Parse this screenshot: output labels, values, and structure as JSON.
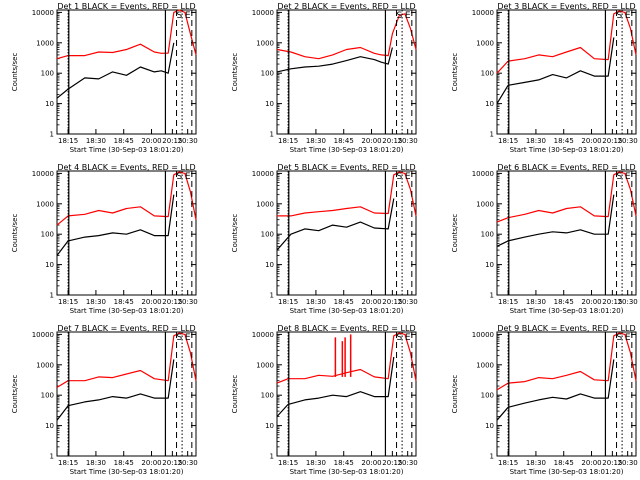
{
  "figure": {
    "ylabel": "Counts/sec",
    "xlabel_prefix": "Start Time",
    "start_time": "(30-Sep-03 18:01:20)",
    "start_time_alt": "(30-Sep-03 18:01:20)",
    "colors": {
      "events": "#000000",
      "lld": "#ff0000"
    },
    "marker_labels": [
      "S",
      "E"
    ]
  },
  "chart_data": [
    {
      "type": "line",
      "title": "Det 1 BLACK = Events, RED = LLD",
      "xlabel": "Start Time (30-Sep-03 18:01:20)",
      "ylabel": "Counts/sec",
      "x_ticks": [
        "18:15",
        "18:30",
        "18:45",
        "20:00",
        "20:15",
        "20:30"
      ],
      "y_ticks": [
        "1",
        "10",
        "100",
        "1000",
        "10000"
      ],
      "yscale": "log",
      "ylim": [
        1,
        12000
      ],
      "series": [
        {
          "color": "#000000",
          "x": [
            0,
            0.8,
            2,
            3,
            4,
            5,
            6,
            7,
            7.5,
            8,
            8.4
          ],
          "y": [
            15,
            30,
            70,
            65,
            110,
            85,
            160,
            110,
            120,
            100,
            1000
          ]
        },
        {
          "color": "#ff0000",
          "x": [
            0,
            0.8,
            2,
            3,
            4,
            5,
            6,
            7,
            7.5,
            8,
            8.4,
            8.8,
            9.2,
            9.6,
            10
          ],
          "y": [
            300,
            380,
            380,
            500,
            480,
            600,
            900,
            500,
            450,
            460,
            10000,
            12000,
            10000,
            2000,
            400
          ]
        }
      ],
      "markers": [
        {
          "label": "S",
          "x": 8.8
        },
        {
          "label": "E",
          "x": 9.4
        }
      ]
    },
    {
      "type": "line",
      "title": "Det 2 BLACK = Events, RED = LLD",
      "xlabel": "Start Time (30-Sep-03 18:01:20)",
      "ylabel": "Counts/sec",
      "x_ticks": [
        "18:15",
        "18:30",
        "18:45",
        "20:00",
        "20:15",
        "20:30"
      ],
      "y_ticks": [
        "1",
        "10",
        "100",
        "1000",
        "10000"
      ],
      "yscale": "log",
      "ylim": [
        1,
        12000
      ],
      "series": [
        {
          "color": "#000000",
          "x": [
            0,
            1,
            2,
            3,
            4,
            5,
            6,
            7,
            7.5,
            8,
            8.3
          ],
          "y": [
            110,
            140,
            160,
            170,
            200,
            260,
            350,
            280,
            230,
            200,
            700
          ]
        },
        {
          "color": "#ff0000",
          "x": [
            0,
            1,
            2,
            3,
            4,
            5,
            6,
            7,
            7.5,
            8,
            8.3,
            8.8,
            9.2,
            9.6,
            10
          ],
          "y": [
            600,
            500,
            350,
            300,
            400,
            600,
            700,
            450,
            400,
            380,
            2000,
            8000,
            9000,
            3000,
            600
          ]
        }
      ],
      "markers": [
        {
          "label": "S",
          "x": 8.8
        },
        {
          "label": "E",
          "x": 9.4
        }
      ]
    },
    {
      "type": "line",
      "title": "Det 3 BLACK = Events, RED = LLD",
      "xlabel": "Start Time (30-Sep-03 18:01:20)",
      "ylabel": "Counts/sec",
      "x_ticks": [
        "18:15",
        "18:30",
        "18:45",
        "20:00",
        "20:15",
        "20:30"
      ],
      "y_ticks": [
        "1",
        "10",
        "100",
        "1000",
        "10000"
      ],
      "yscale": "log",
      "ylim": [
        1,
        12000
      ],
      "series": [
        {
          "color": "#000000",
          "x": [
            0,
            0.8,
            2,
            3,
            4,
            5,
            6,
            7,
            8,
            8.4
          ],
          "y": [
            10,
            40,
            50,
            60,
            90,
            70,
            120,
            80,
            80,
            1500
          ]
        },
        {
          "color": "#ff0000",
          "x": [
            0,
            0.8,
            2,
            3,
            4,
            5,
            6,
            7,
            8,
            8.4,
            8.8,
            9.2,
            9.6,
            10
          ],
          "y": [
            100,
            250,
            300,
            400,
            350,
            500,
            700,
            300,
            280,
            9000,
            11000,
            10000,
            3000,
            400
          ]
        }
      ],
      "markers": [
        {
          "label": "S",
          "x": 8.8
        },
        {
          "label": "E",
          "x": 9.4
        }
      ]
    },
    {
      "type": "line",
      "title": "Det 4 BLACK = Events, RED = LLD",
      "xlabel": "Start Time (30-Sep-03 18:01:20)",
      "ylabel": "Counts/sec",
      "x_ticks": [
        "18:15",
        "18:30",
        "18:45",
        "20:00",
        "20:15",
        "20:30"
      ],
      "y_ticks": [
        "1",
        "10",
        "100",
        "1000",
        "10000"
      ],
      "yscale": "log",
      "ylim": [
        1,
        12000
      ],
      "series": [
        {
          "color": "#000000",
          "x": [
            0,
            0.8,
            2,
            3,
            4,
            5,
            6,
            7,
            8,
            8.4
          ],
          "y": [
            20,
            60,
            80,
            90,
            110,
            100,
            140,
            90,
            90,
            2000
          ]
        },
        {
          "color": "#ff0000",
          "x": [
            0,
            0.8,
            2,
            3,
            4,
            5,
            6,
            7,
            8,
            8.4,
            8.8,
            9.2,
            9.6,
            10
          ],
          "y": [
            200,
            400,
            450,
            600,
            500,
            700,
            800,
            400,
            380,
            9000,
            11000,
            10000,
            2500,
            300
          ]
        }
      ],
      "markers": [
        {
          "label": "S",
          "x": 8.8
        },
        {
          "label": "E",
          "x": 9.4
        }
      ]
    },
    {
      "type": "line",
      "title": "Det 5 BLACK = Events, RED = LLD",
      "xlabel": "Start Time (30-Sep-03 18:01:20)",
      "ylabel": "Counts/sec",
      "x_ticks": [
        "18:15",
        "18:30",
        "18:45",
        "20:00",
        "20:15",
        "20:30"
      ],
      "y_ticks": [
        "1",
        "10",
        "100",
        "1000",
        "10000"
      ],
      "yscale": "log",
      "ylim": [
        1,
        12000
      ],
      "series": [
        {
          "color": "#000000",
          "x": [
            0,
            1,
            2,
            3,
            4,
            5,
            6,
            7,
            8,
            8.4
          ],
          "y": [
            30,
            100,
            150,
            130,
            200,
            170,
            250,
            160,
            150,
            1500
          ]
        },
        {
          "color": "#ff0000",
          "x": [
            0,
            1,
            2,
            3,
            4,
            5,
            6,
            7,
            8,
            8.4,
            8.8,
            9.2,
            9.6,
            10
          ],
          "y": [
            400,
            400,
            500,
            550,
            600,
            700,
            800,
            500,
            480,
            9000,
            11000,
            10000,
            3000,
            400
          ]
        }
      ],
      "markers": [
        {
          "label": "S",
          "x": 8.8
        },
        {
          "label": "E",
          "x": 9.4
        }
      ]
    },
    {
      "type": "line",
      "title": "Det 6 BLACK = Events, RED = LLD",
      "xlabel": "Start Time (30-Sep-03 18:01:20)",
      "ylabel": "Counts/sec",
      "x_ticks": [
        "18:15",
        "18:30",
        "18:45",
        "20:00",
        "20:15",
        "20:30"
      ],
      "y_ticks": [
        "1",
        "10",
        "100",
        "1000",
        "10000"
      ],
      "yscale": "log",
      "ylim": [
        1,
        12000
      ],
      "series": [
        {
          "color": "#000000",
          "x": [
            0,
            0.8,
            2,
            3,
            4,
            5,
            6,
            7,
            8,
            8.4
          ],
          "y": [
            40,
            60,
            80,
            100,
            120,
            110,
            140,
            100,
            100,
            2000
          ]
        },
        {
          "color": "#ff0000",
          "x": [
            0,
            0.8,
            2,
            3,
            4,
            5,
            6,
            7,
            8,
            8.4,
            8.8,
            9.2,
            9.6,
            10
          ],
          "y": [
            250,
            350,
            450,
            600,
            500,
            700,
            800,
            400,
            380,
            9000,
            11000,
            10000,
            3000,
            400
          ]
        }
      ],
      "markers": [
        {
          "label": "S",
          "x": 8.8
        },
        {
          "label": "E",
          "x": 9.4
        }
      ]
    },
    {
      "type": "line",
      "title": "Det 7 BLACK = Events, RED = LLD",
      "xlabel": "Start Time (30-Sep-03 18:01:20)",
      "ylabel": "Counts/sec",
      "x_ticks": [
        "18:15",
        "18:30",
        "18:45",
        "20:00",
        "20:15",
        "20:30"
      ],
      "y_ticks": [
        "1",
        "10",
        "100",
        "1000",
        "10000"
      ],
      "yscale": "log",
      "ylim": [
        1,
        12000
      ],
      "series": [
        {
          "color": "#000000",
          "x": [
            0,
            0.8,
            2,
            3,
            4,
            5,
            6,
            7,
            8,
            8.4
          ],
          "y": [
            15,
            45,
            60,
            70,
            90,
            80,
            110,
            80,
            80,
            1500
          ]
        },
        {
          "color": "#ff0000",
          "x": [
            0,
            0.8,
            2,
            3,
            4,
            5,
            6,
            7,
            8,
            8.4,
            8.8,
            9.2,
            9.6,
            10
          ],
          "y": [
            180,
            300,
            300,
            400,
            380,
            500,
            650,
            350,
            300,
            9000,
            11000,
            10000,
            2500,
            300
          ]
        }
      ],
      "markers": [
        {
          "label": "S",
          "x": 8.8
        },
        {
          "label": "E",
          "x": 9.4
        }
      ]
    },
    {
      "type": "line",
      "title": "Det 8 BLACK = Events, RED = LLD",
      "xlabel": "Start Time (30-Sep-03 18:01:20)",
      "ylabel": "Counts/sec",
      "x_ticks": [
        "18:15",
        "18:30",
        "18:45",
        "20:00",
        "20:15",
        "20:30"
      ],
      "y_ticks": [
        "1",
        "10",
        "100",
        "1000",
        "10000"
      ],
      "yscale": "log",
      "ylim": [
        1,
        12000
      ],
      "series": [
        {
          "color": "#000000",
          "x": [
            0,
            0.8,
            2,
            3,
            4,
            5,
            6,
            7,
            8,
            8.4
          ],
          "y": [
            20,
            50,
            70,
            80,
            100,
            90,
            130,
            90,
            90,
            1800
          ]
        },
        {
          "color": "#ff0000",
          "x": [
            0,
            0.8,
            2,
            3,
            4,
            5,
            6,
            7,
            8,
            8.4,
            8.8,
            9.2,
            9.6,
            10
          ],
          "y": [
            250,
            350,
            350,
            450,
            420,
            550,
            700,
            400,
            350,
            9000,
            11000,
            10000,
            2500,
            300
          ]
        }
      ],
      "markers": [
        {
          "label": "S",
          "x": 8.8
        },
        {
          "label": "E",
          "x": 9.4
        }
      ],
      "spikes": [
        {
          "x": 4.2,
          "y": 8000
        },
        {
          "x": 4.7,
          "y": 6000
        },
        {
          "x": 4.9,
          "y": 8000
        },
        {
          "x": 5.3,
          "y": 10000
        }
      ]
    },
    {
      "type": "line",
      "title": "Det 9 BLACK = Events, RED = LLD",
      "xlabel": "Start Time (30-Sep-03 18:01:20)",
      "ylabel": "Counts/sec",
      "x_ticks": [
        "18:15",
        "18:30",
        "18:45",
        "20:00",
        "20:15",
        "20:30"
      ],
      "y_ticks": [
        "1",
        "10",
        "100",
        "1000",
        "10000"
      ],
      "yscale": "log",
      "ylim": [
        1,
        12000
      ],
      "series": [
        {
          "color": "#000000",
          "x": [
            0,
            0.8,
            2,
            3,
            4,
            5,
            6,
            7,
            8,
            8.4
          ],
          "y": [
            15,
            40,
            55,
            70,
            85,
            75,
            110,
            80,
            80,
            1500
          ]
        },
        {
          "color": "#ff0000",
          "x": [
            0,
            0.8,
            2,
            3,
            4,
            5,
            6,
            7,
            8,
            8.4,
            8.8,
            9.2,
            9.6,
            10
          ],
          "y": [
            150,
            250,
            280,
            380,
            350,
            450,
            600,
            320,
            300,
            9000,
            11000,
            10000,
            2500,
            300
          ]
        }
      ],
      "markers": [
        {
          "label": "S",
          "x": 8.8
        },
        {
          "label": "E",
          "x": 9.4
        }
      ]
    }
  ]
}
